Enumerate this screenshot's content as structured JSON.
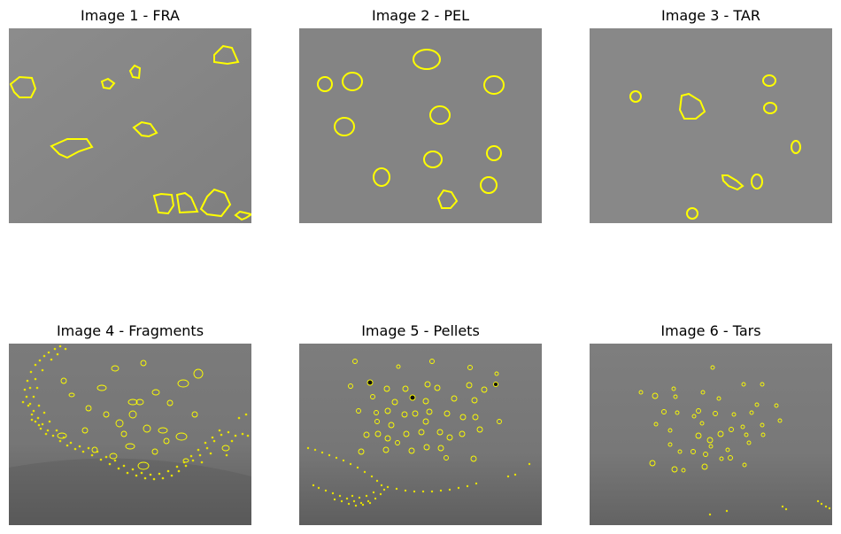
{
  "panels": [
    {
      "title": "Image 1 - FRA"
    },
    {
      "title": "Image 2 - PEL"
    },
    {
      "title": "Image 3 - TAR"
    },
    {
      "title": "Image 4 - Fragments"
    },
    {
      "title": "Image 5 - Pellets"
    },
    {
      "title": "Image 6 - Tars"
    }
  ],
  "colors": {
    "outline": "#ffff00",
    "background_gray": "#878787",
    "tar_black": "#141414"
  }
}
